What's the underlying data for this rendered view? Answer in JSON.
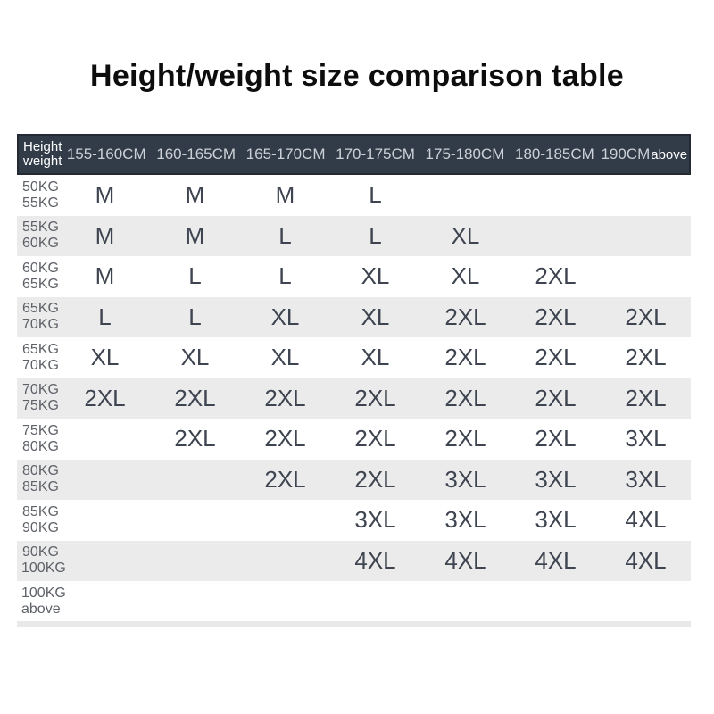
{
  "title": "Height/weight size comparison table",
  "colors": {
    "title_text": "#0d0d0d",
    "header_bg": "#323b48",
    "header_border": "#232a34",
    "header_text": "#ccd1d7",
    "header_corner_text": "#ffffff",
    "row_alt_bg": "#ebebeb",
    "cell_text": "#3f4550",
    "weight_text": "#5e6268",
    "strip_bg": "#e9e9e9"
  },
  "table": {
    "corner": {
      "line1": "Height",
      "line2": "weight"
    },
    "columns": [
      "155-160CM",
      "160-165CM",
      "165-170CM",
      "170-175CM",
      "175-180CM",
      "180-185CM"
    ],
    "last_column": {
      "main": "190CM",
      "suffix": "above"
    },
    "rows": [
      {
        "weight": [
          "50KG",
          "55KG"
        ],
        "cells": [
          "M",
          "M",
          "M",
          "L",
          "",
          "",
          ""
        ]
      },
      {
        "weight": [
          "55KG",
          "60KG"
        ],
        "cells": [
          "M",
          "M",
          "L",
          "L",
          "XL",
          "",
          ""
        ]
      },
      {
        "weight": [
          "60KG",
          "65KG"
        ],
        "cells": [
          "M",
          "L",
          "L",
          "XL",
          "XL",
          "2XL",
          ""
        ]
      },
      {
        "weight": [
          "65KG",
          "70KG"
        ],
        "cells": [
          "L",
          "L",
          "XL",
          "XL",
          "2XL",
          "2XL",
          "2XL"
        ]
      },
      {
        "weight": [
          "65KG",
          "70KG"
        ],
        "cells": [
          "XL",
          "XL",
          "XL",
          "XL",
          "2XL",
          "2XL",
          "2XL"
        ]
      },
      {
        "weight": [
          "70KG",
          "75KG"
        ],
        "cells": [
          "2XL",
          "2XL",
          "2XL",
          "2XL",
          "2XL",
          "2XL",
          "2XL"
        ]
      },
      {
        "weight": [
          "75KG",
          "80KG"
        ],
        "cells": [
          "",
          "2XL",
          "2XL",
          "2XL",
          "2XL",
          "2XL",
          "3XL"
        ]
      },
      {
        "weight": [
          "80KG",
          "85KG"
        ],
        "cells": [
          "",
          "",
          "2XL",
          "2XL",
          "3XL",
          "3XL",
          "3XL"
        ]
      },
      {
        "weight": [
          "85KG",
          "90KG"
        ],
        "cells": [
          "",
          "",
          "",
          "3XL",
          "3XL",
          "3XL",
          "4XL"
        ]
      },
      {
        "weight": [
          "90KG",
          "100KG"
        ],
        "cells": [
          "",
          "",
          "",
          "4XL",
          "4XL",
          "4XL",
          "4XL"
        ]
      },
      {
        "weight": [
          "100KG",
          "above"
        ],
        "cells": [
          "",
          "",
          "",
          "",
          "",
          "",
          ""
        ]
      }
    ]
  }
}
